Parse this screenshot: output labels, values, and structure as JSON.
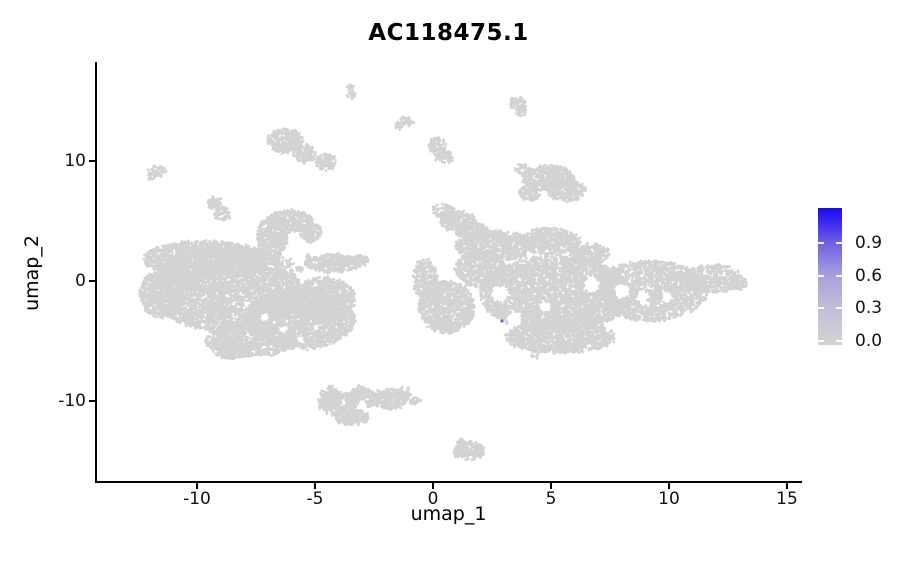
{
  "title": "AC118475.1",
  "axes": {
    "x": {
      "label": "umap_1",
      "tick_labels": [
        "-10",
        "-5",
        "0",
        "5",
        "10",
        "15"
      ],
      "tick_values": [
        -10,
        -5,
        0,
        5,
        10,
        15
      ],
      "range": [
        -14.2,
        15.5
      ]
    },
    "y": {
      "label": "umap_2",
      "tick_labels": [
        "10",
        "0",
        "-10"
      ],
      "tick_values": [
        10,
        0,
        -10
      ],
      "range": [
        -16.6,
        18.3
      ]
    }
  },
  "legend": {
    "entries": [
      {
        "label": "0.9",
        "value": 0.9
      },
      {
        "label": "0.6",
        "value": 0.6
      },
      {
        "label": "0.3",
        "value": 0.3
      },
      {
        "label": "0.0",
        "value": 0.0
      }
    ],
    "low_color": "#D3D3D3",
    "high_color": "#1C0BF7",
    "max_value": 1.22
  },
  "chart_data": {
    "type": "scatter",
    "title": "AC118475.1",
    "xlabel": "umap_1",
    "ylabel": "umap_2",
    "x_ticks": [
      -10,
      -5,
      0,
      5,
      10,
      15
    ],
    "y_ticks": [
      -10,
      0,
      10
    ],
    "x_range": [
      -14.2,
      15.5
    ],
    "y_range": [
      -16.6,
      18.3
    ],
    "grid": false,
    "legend_position": "right",
    "point_color": "#D3D3D3",
    "point_radius_px": 1.4,
    "colorbar": {
      "tick_labels": [
        0.9,
        0.6,
        0.3,
        0.0
      ],
      "low": "#D3D3D3",
      "high": "#1C0BF7"
    },
    "clusters": [
      {
        "name": "left-main",
        "lobes": [
          [
            -8.81,
            -0.67,
            3.18,
            3.5,
            4200
          ],
          [
            -5.64,
            -3.17,
            2.33,
            2.5,
            2300
          ],
          [
            -9.66,
            1.83,
            2.63,
            1.5,
            1500
          ],
          [
            -11.57,
            -1.08,
            0.85,
            2.0,
            650
          ],
          [
            -6.82,
            3.67,
            0.64,
            1.67,
            420
          ],
          [
            -6.06,
            5.0,
            0.93,
            0.92,
            330
          ],
          [
            -5.21,
            4.08,
            0.47,
            0.83,
            150
          ],
          [
            -4.24,
            1.5,
            1.19,
            0.75,
            350
          ],
          [
            -3.09,
            1.67,
            0.38,
            0.5,
            70
          ],
          [
            -7.75,
            -5.0,
            1.91,
            1.33,
            900
          ],
          [
            -4.58,
            -1.5,
            1.27,
            1.83,
            900
          ],
          [
            -8.52,
            -5.83,
            0.76,
            0.67,
            180
          ],
          [
            -6.57,
            2.0,
            0.21,
            0.42,
            15
          ],
          [
            -6.06,
            1.5,
            0.21,
            0.42,
            15
          ],
          [
            -5.64,
            1.0,
            0.17,
            0.33,
            12
          ],
          [
            -5.25,
            2.0,
            0.17,
            0.33,
            12
          ]
        ]
      },
      {
        "name": "right-main",
        "lobes": [
          [
            0.42,
            5.83,
            0.51,
            0.58,
            90
          ],
          [
            1.06,
            5.0,
            0.76,
            0.83,
            280
          ],
          [
            1.65,
            4.17,
            0.68,
            0.75,
            220
          ],
          [
            2.63,
            2.92,
            1.69,
            1.25,
            850
          ],
          [
            4.96,
            3.33,
            1.27,
            1.08,
            550
          ],
          [
            0.59,
            -2.17,
            1.19,
            2.17,
            1000
          ],
          [
            5.17,
            -1.08,
            3.18,
            3.17,
            3900
          ],
          [
            9.19,
            -0.83,
            2.46,
            2.5,
            2000
          ],
          [
            11.82,
            0.17,
            1.27,
            1.17,
            480
          ],
          [
            12.92,
            -0.17,
            0.42,
            0.58,
            70
          ],
          [
            5.38,
            -4.67,
            2.33,
            1.33,
            1200
          ],
          [
            1.99,
            1.0,
            1.06,
            1.5,
            620
          ],
          [
            -0.34,
            0.17,
            0.51,
            1.67,
            300
          ],
          [
            6.65,
            2.25,
            0.85,
            0.83,
            270
          ],
          [
            3.69,
            -5.0,
            0.21,
            0.33,
            18
          ],
          [
            4.32,
            -6.17,
            0.17,
            0.33,
            14
          ]
        ]
      },
      {
        "name": "top-small-blobs",
        "lobes": [
          [
            -3.47,
            15.83,
            0.17,
            0.67,
            40
          ],
          [
            3.56,
            14.83,
            0.34,
            0.5,
            65
          ],
          [
            3.73,
            14.17,
            0.25,
            0.42,
            40
          ],
          [
            -1.19,
            13.25,
            0.34,
            0.42,
            50
          ],
          [
            -1.44,
            12.92,
            0.17,
            0.33,
            18
          ],
          [
            0.17,
            11.25,
            0.38,
            0.67,
            95
          ],
          [
            0.47,
            10.33,
            0.42,
            0.5,
            70
          ],
          [
            -6.27,
            11.67,
            0.76,
            1.0,
            290
          ],
          [
            -5.42,
            10.58,
            0.51,
            0.75,
            140
          ],
          [
            -4.53,
            9.92,
            0.47,
            0.67,
            115
          ],
          [
            -11.69,
            9.17,
            0.38,
            0.42,
            45
          ],
          [
            -11.95,
            8.75,
            0.17,
            0.33,
            15
          ],
          [
            4.87,
            8.58,
            1.1,
            1.08,
            470
          ],
          [
            5.64,
            7.58,
            0.85,
            0.92,
            300
          ],
          [
            4.11,
            7.33,
            0.47,
            0.67,
            110
          ],
          [
            3.81,
            9.33,
            0.3,
            0.42,
            40
          ],
          [
            -9.24,
            6.5,
            0.3,
            0.5,
            55
          ],
          [
            -8.94,
            5.58,
            0.34,
            0.58,
            65
          ]
        ]
      },
      {
        "name": "bottom-small-blobs",
        "lobes": [
          [
            -4.03,
            -10.17,
            0.81,
            1.0,
            350
          ],
          [
            -2.97,
            -9.75,
            0.72,
            0.75,
            240
          ],
          [
            -1.82,
            -9.83,
            0.72,
            0.83,
            270
          ],
          [
            -3.43,
            -11.33,
            0.72,
            0.67,
            210
          ],
          [
            -4.36,
            -9.5,
            0.38,
            0.67,
            80
          ],
          [
            -3.14,
            -9.08,
            0.25,
            0.42,
            30
          ],
          [
            -1.23,
            -9.33,
            0.3,
            0.5,
            42
          ],
          [
            -0.76,
            -10.0,
            0.21,
            0.33,
            25
          ],
          [
            1.53,
            -14.17,
            0.68,
            0.75,
            230
          ],
          [
            1.19,
            -13.67,
            0.3,
            0.5,
            40
          ]
        ]
      }
    ],
    "holes": [
      [
        2.84,
        -1.08,
        0.38,
        0.75
      ],
      [
        3.47,
        -3.17,
        0.34,
        0.67
      ],
      [
        1.99,
        -4.17,
        0.3,
        0.58
      ],
      [
        6.74,
        -0.33,
        0.34,
        0.67
      ],
      [
        8.01,
        -0.83,
        0.34,
        0.67
      ],
      [
        8.9,
        -1.25,
        0.25,
        0.5
      ],
      [
        4.75,
        -2.17,
        0.25,
        0.5
      ],
      [
        9.92,
        -1.33,
        0.25,
        0.5
      ],
      [
        -7.12,
        -3.0,
        0.21,
        0.42
      ],
      [
        -6.36,
        -4.08,
        0.17,
        0.33
      ],
      [
        -5.64,
        -4.92,
        0.17,
        0.33
      ],
      [
        -7.88,
        -1.92,
        0.17,
        0.33
      ],
      [
        -3.01,
        -10.42,
        0.21,
        0.42
      ],
      [
        -3.77,
        -10.17,
        0.13,
        0.25
      ]
    ],
    "highlight_points": [
      {
        "x": 2.92,
        "y": -3.33,
        "color": "#6A6ADF"
      }
    ]
  }
}
